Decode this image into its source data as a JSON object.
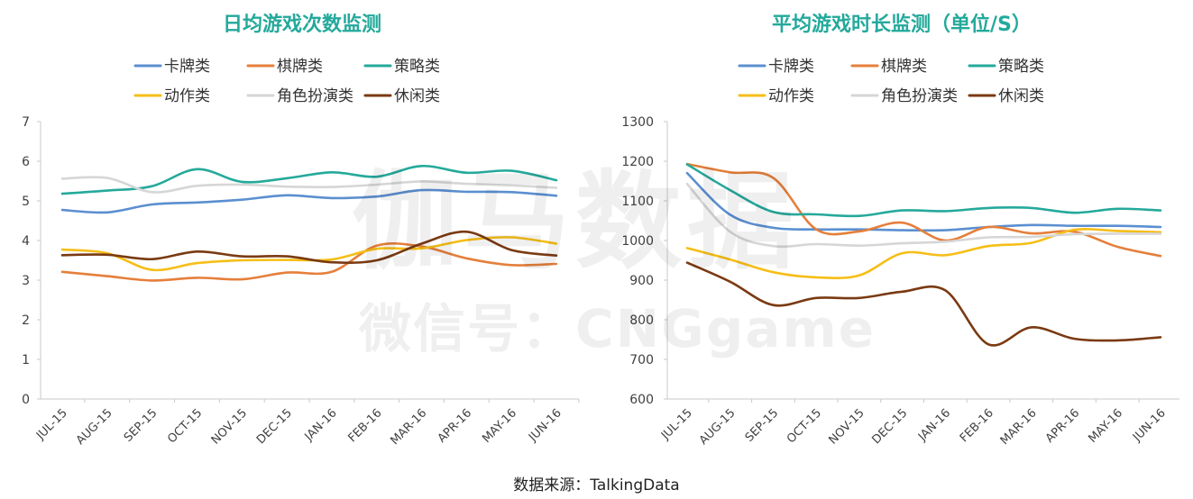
{
  "source_label": "数据来源：TalkingData",
  "watermark": {
    "main": "伽马数据",
    "sub": "微信号：CNGgame"
  },
  "colors": {
    "卡牌类": "#5b8fd0",
    "棋牌类": "#e57f3b",
    "策略类": "#25a99b",
    "动作类": "#f6be17",
    "角色扮演类": "#d6d6d6",
    "休闲类": "#7a3a12",
    "title": "#23a99b",
    "axis_text": "#404040",
    "axis_line": "#c9c9c9"
  },
  "chart_data": [
    {
      "type": "line",
      "title": "日均游戏次数监测",
      "xlabel": "",
      "ylabel": "",
      "ylim": [
        0,
        7
      ],
      "yticks": [
        "0",
        "1",
        "2",
        "3",
        "4",
        "5",
        "6",
        "7"
      ],
      "grid": false,
      "legend_position": "top",
      "categories": [
        "JUL-15",
        "AUG-15",
        "SEP-15",
        "OCT-15",
        "NOV-15",
        "DEC-15",
        "JAN-16",
        "FEB-16",
        "MAR-16",
        "APR-16",
        "MAY-16",
        "JUN-16"
      ],
      "series": [
        {
          "name": "卡牌类",
          "values": [
            4.77,
            4.71,
            4.91,
            4.96,
            5.03,
            5.14,
            5.07,
            5.11,
            5.27,
            5.23,
            5.22,
            5.13
          ]
        },
        {
          "name": "棋牌类",
          "values": [
            3.21,
            3.1,
            2.99,
            3.06,
            3.02,
            3.19,
            3.21,
            3.87,
            3.85,
            3.55,
            3.38,
            3.41
          ]
        },
        {
          "name": "策略类",
          "values": [
            5.18,
            5.26,
            5.37,
            5.8,
            5.48,
            5.57,
            5.72,
            5.61,
            5.88,
            5.71,
            5.76,
            5.52
          ]
        },
        {
          "name": "动作类",
          "values": [
            3.77,
            3.68,
            3.26,
            3.43,
            3.5,
            3.51,
            3.52,
            3.79,
            3.8,
            4.01,
            4.08,
            3.92
          ]
        },
        {
          "name": "角色扮演类",
          "values": [
            5.56,
            5.58,
            5.22,
            5.38,
            5.41,
            5.36,
            5.35,
            5.41,
            5.49,
            5.43,
            5.39,
            5.33
          ]
        },
        {
          "name": "休闲类",
          "values": [
            3.63,
            3.64,
            3.53,
            3.72,
            3.6,
            3.6,
            3.45,
            3.5,
            3.92,
            4.22,
            3.76,
            3.62
          ]
        }
      ]
    },
    {
      "type": "line",
      "title": "平均游戏时长监测（单位/S）",
      "xlabel": "",
      "ylabel": "",
      "ylim": [
        600,
        1300
      ],
      "yticks": [
        "600",
        "700",
        "800",
        "900",
        "1000",
        "1100",
        "1200",
        "1300"
      ],
      "grid": false,
      "legend_position": "top",
      "categories": [
        "JUL-15",
        "AUG-15",
        "SEP-15",
        "OCT-15",
        "NOV-15",
        "DEC-15",
        "JAN-16",
        "FEB-16",
        "MAR-16",
        "APR-16",
        "MAY-16",
        "JUN-16"
      ],
      "series": [
        {
          "name": "卡牌类",
          "values": [
            1170,
            1065,
            1032,
            1028,
            1028,
            1026,
            1026,
            1034,
            1039,
            1037,
            1037,
            1034
          ]
        },
        {
          "name": "棋牌类",
          "values": [
            1193,
            1172,
            1158,
            1028,
            1023,
            1045,
            1000,
            1034,
            1018,
            1022,
            984,
            961
          ]
        },
        {
          "name": "策略类",
          "values": [
            1192,
            1127,
            1072,
            1066,
            1062,
            1076,
            1074,
            1082,
            1082,
            1070,
            1080,
            1076
          ]
        },
        {
          "name": "动作类",
          "values": [
            981,
            952,
            920,
            907,
            912,
            968,
            963,
            986,
            994,
            1027,
            1024,
            1021
          ]
        },
        {
          "name": "角色扮演类",
          "values": [
            1143,
            1022,
            986,
            991,
            987,
            993,
            997,
            1008,
            1009,
            1016,
            1017,
            1017
          ]
        },
        {
          "name": "休闲类",
          "values": [
            944,
            896,
            837,
            855,
            855,
            871,
            874,
            738,
            781,
            752,
            748,
            756
          ]
        }
      ]
    }
  ]
}
